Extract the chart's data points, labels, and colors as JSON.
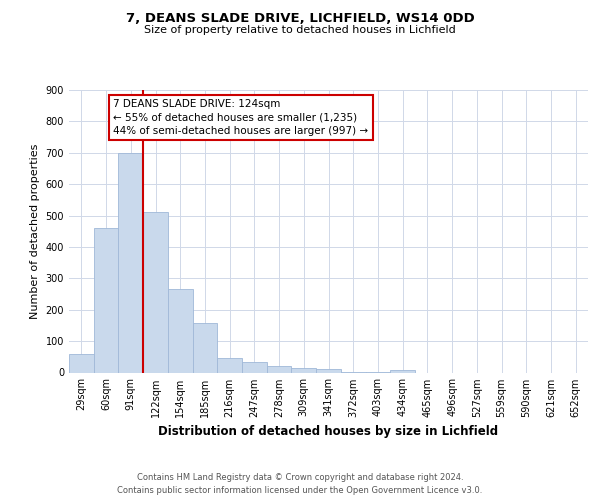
{
  "title1": "7, DEANS SLADE DRIVE, LICHFIELD, WS14 0DD",
  "title2": "Size of property relative to detached houses in Lichfield",
  "xlabel": "Distribution of detached houses by size in Lichfield",
  "ylabel": "Number of detached properties",
  "categories": [
    "29sqm",
    "60sqm",
    "91sqm",
    "122sqm",
    "154sqm",
    "185sqm",
    "216sqm",
    "247sqm",
    "278sqm",
    "309sqm",
    "341sqm",
    "372sqm",
    "403sqm",
    "434sqm",
    "465sqm",
    "496sqm",
    "527sqm",
    "559sqm",
    "590sqm",
    "621sqm",
    "652sqm"
  ],
  "values": [
    60,
    460,
    700,
    510,
    265,
    158,
    47,
    35,
    20,
    15,
    10,
    3,
    3,
    8,
    0,
    0,
    0,
    0,
    0,
    0,
    0
  ],
  "bar_color": "#c9d9ec",
  "bar_edge_color": "#a0b8d8",
  "highlight_line_color": "#cc0000",
  "annotation_box_text": "7 DEANS SLADE DRIVE: 124sqm\n← 55% of detached houses are smaller (1,235)\n44% of semi-detached houses are larger (997) →",
  "annotation_box_color": "#ffffff",
  "annotation_box_edge_color": "#cc0000",
  "ylim": [
    0,
    900
  ],
  "yticks": [
    0,
    100,
    200,
    300,
    400,
    500,
    600,
    700,
    800,
    900
  ],
  "footer": "Contains HM Land Registry data © Crown copyright and database right 2024.\nContains public sector information licensed under the Open Government Licence v3.0.",
  "bg_color": "#ffffff",
  "grid_color": "#d0d8e8",
  "title1_fontsize": 9.5,
  "title2_fontsize": 8.0,
  "xlabel_fontsize": 8.5,
  "ylabel_fontsize": 8.0,
  "tick_fontsize": 7.0,
  "footer_fontsize": 6.0,
  "ann_fontsize": 7.5,
  "highlight_bar_index": 3
}
